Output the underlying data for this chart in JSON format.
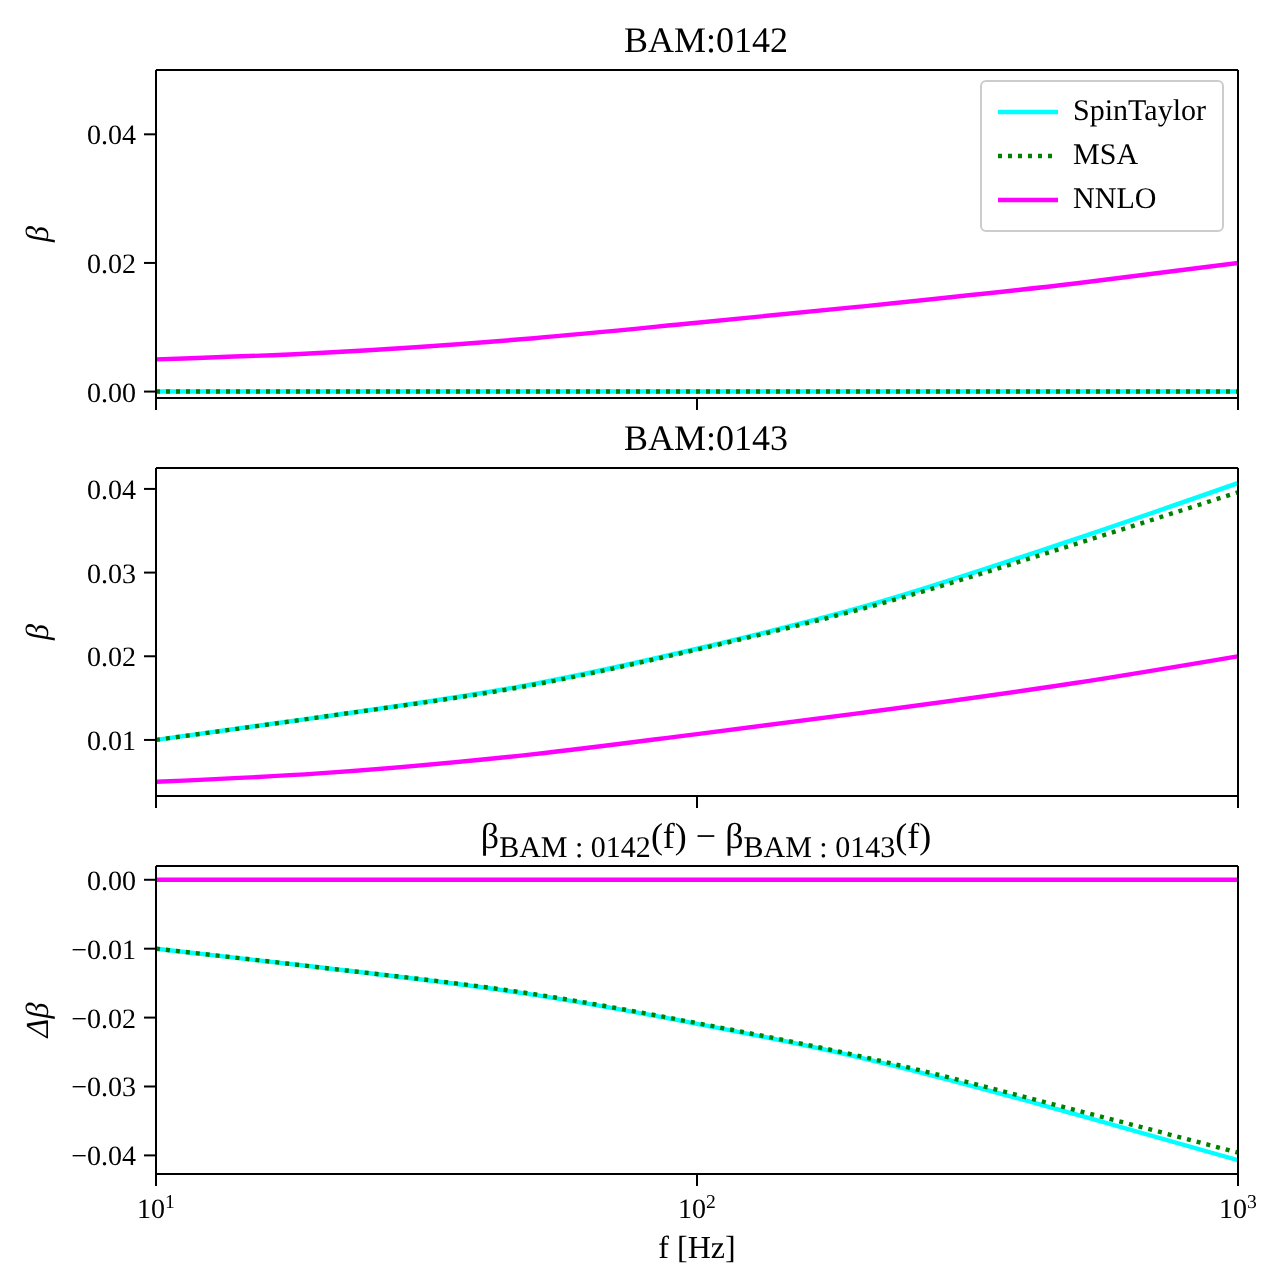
{
  "chart_data": [
    {
      "type": "line",
      "title": "BAM:0142",
      "ylabel": "β",
      "log": "x",
      "xlim": [
        10,
        1000
      ],
      "xticks": [
        {
          "value": 10,
          "label": null
        },
        {
          "value": 100,
          "label": null
        },
        {
          "value": 1000,
          "label": null
        }
      ],
      "ylim": [
        -0.001,
        0.05
      ],
      "yticks": [
        {
          "value": 0,
          "label": "0.00"
        },
        0.02,
        0.04
      ],
      "tick_labels": "y",
      "legend": "top right",
      "marker": "none",
      "x": [
        10,
        20,
        50,
        100,
        200,
        500,
        1000
      ],
      "series": [
        {
          "name": "SpinTaylor",
          "color": "#00ffff",
          "line_style": "solid",
          "values": [
            0,
            0,
            0,
            0,
            0,
            0,
            0
          ]
        },
        {
          "name": "MSA",
          "color": "#008000",
          "line_style": "dotted",
          "values": [
            0,
            0,
            0,
            0,
            0,
            0,
            0
          ]
        },
        {
          "name": "NNLO",
          "color": "#ff00ff",
          "line_style": "solid",
          "values": [
            0.005,
            0.006,
            0.0083,
            0.0107,
            0.0132,
            0.0168,
            0.02
          ]
        }
      ]
    },
    {
      "type": "line",
      "title": "BAM:0143",
      "ylabel": "β",
      "log": "x",
      "xlim": [
        10,
        1000
      ],
      "xticks": [
        {
          "value": 10,
          "label": null
        },
        {
          "value": 100,
          "label": null
        },
        {
          "value": 1000,
          "label": null
        }
      ],
      "ylim": [
        0.0033,
        0.0425
      ],
      "yticks": [
        0.01,
        0.02,
        0.03,
        0.04
      ],
      "tick_labels": "y",
      "marker": "none",
      "x": [
        10,
        20,
        50,
        100,
        200,
        500,
        1000
      ],
      "series": [
        {
          "color": "#00ffff",
          "line_style": "solid",
          "values": [
            0.01,
            0.0127,
            0.0167,
            0.0209,
            0.0258,
            0.034,
            0.0407
          ]
        },
        {
          "color": "#008000",
          "line_style": "dotted",
          "values": [
            0.01,
            0.0127,
            0.0166,
            0.0208,
            0.0256,
            0.0334,
            0.0396
          ]
        },
        {
          "color": "#ff00ff",
          "line_style": "solid",
          "values": [
            0.005,
            0.006,
            0.0083,
            0.0107,
            0.0132,
            0.0168,
            0.02
          ]
        }
      ]
    },
    {
      "type": "line",
      "title": "β$_{BAM : 0142}$(f) − β$_{BAM : 0143}$(f)",
      "ylabel": "Δβ",
      "xlabel": "f [Hz]",
      "log": "x",
      "xlim": [
        10,
        1000
      ],
      "xticks": [
        {
          "value": 10,
          "label": "10$^{1}$"
        },
        {
          "value": 100,
          "label": "10$^{2}$"
        },
        {
          "value": 1000,
          "label": "10$^{3}$"
        }
      ],
      "ylim": [
        -0.0427,
        0.002
      ],
      "yticks": [
        {
          "value": 0,
          "label": "0.00"
        },
        {
          "value": -0.01,
          "label": "−0.01"
        },
        {
          "value": -0.02,
          "label": "−0.02"
        },
        {
          "value": -0.03,
          "label": "−0.03"
        },
        {
          "value": -0.04,
          "label": "−0.04"
        }
      ],
      "marker": "none",
      "x": [
        10,
        20,
        50,
        100,
        200,
        500,
        1000
      ],
      "series": [
        {
          "color": "#00ffff",
          "line_style": "solid",
          "values": [
            -0.01,
            -0.0127,
            -0.0167,
            -0.0209,
            -0.0258,
            -0.034,
            -0.0407
          ]
        },
        {
          "color": "#008000",
          "line_style": "dotted",
          "values": [
            -0.01,
            -0.0127,
            -0.0166,
            -0.0208,
            -0.0256,
            -0.0334,
            -0.0396
          ]
        },
        {
          "color": "#ff00ff",
          "line_style": "solid",
          "values": [
            0,
            0,
            0,
            0,
            0,
            0,
            0
          ]
        }
      ]
    }
  ]
}
